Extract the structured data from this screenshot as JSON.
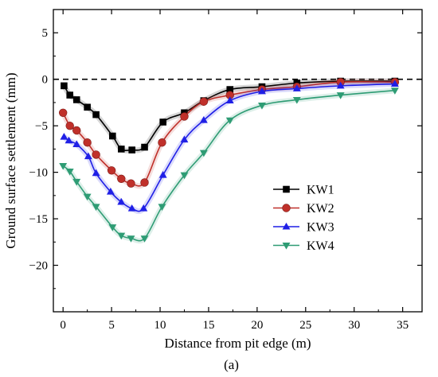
{
  "chart_data": {
    "type": "line",
    "xlabel": "Distance from pit edge (m)",
    "ylabel": "Ground surface settlement (mm)",
    "xlim": [
      -1,
      37
    ],
    "ylim": [
      -25,
      7.5
    ],
    "xticks": [
      0,
      5,
      10,
      15,
      20,
      25,
      30,
      35
    ],
    "yticks": [
      -20,
      -15,
      -10,
      -5,
      0,
      5
    ],
    "ytick_labels": [
      "−20",
      "−15",
      "−10",
      "−5",
      "0",
      "5"
    ],
    "reference_line": {
      "y": 0,
      "style": "dashed"
    },
    "legend_position": "center-right",
    "caption": "(a)",
    "series": [
      {
        "name": "KW1",
        "color": "#000000",
        "marker": "square",
        "x": [
          0.1,
          0.7,
          1.4,
          2.5,
          3.4,
          5.1,
          6.0,
          7.1,
          8.4,
          10.3,
          12.5,
          14.5,
          17.2,
          20.5,
          24.1,
          28.6,
          34.2
        ],
        "y": [
          -0.7,
          -1.7,
          -2.2,
          -3.0,
          -3.8,
          -6.1,
          -7.5,
          -7.6,
          -7.3,
          -4.6,
          -3.6,
          -2.3,
          -1.1,
          -0.8,
          -0.4,
          -0.2,
          -0.2
        ]
      },
      {
        "name": "KW2",
        "color": "#c0302a",
        "marker": "circle",
        "x": [
          0.0,
          0.7,
          1.4,
          2.5,
          3.4,
          5.0,
          6.0,
          7.0,
          8.4,
          10.2,
          12.5,
          14.5,
          17.2,
          20.5,
          24.1,
          28.6,
          34.2
        ],
        "y": [
          -3.6,
          -5.0,
          -5.5,
          -6.8,
          -8.1,
          -9.8,
          -10.7,
          -11.2,
          -11.1,
          -6.8,
          -4.0,
          -2.4,
          -1.7,
          -1.1,
          -0.8,
          -0.3,
          -0.3
        ]
      },
      {
        "name": "KW3",
        "color": "#1f1fe6",
        "marker": "triangle-up",
        "x": [
          0.1,
          0.6,
          1.4,
          2.6,
          3.4,
          4.9,
          6.0,
          7.1,
          8.3,
          10.3,
          12.5,
          14.5,
          17.2,
          20.5,
          24.1,
          28.6,
          34.2
        ],
        "y": [
          -6.2,
          -6.6,
          -7.0,
          -8.3,
          -10.1,
          -12.1,
          -13.2,
          -13.9,
          -13.9,
          -10.3,
          -6.5,
          -4.4,
          -2.3,
          -1.3,
          -1.0,
          -0.7,
          -0.5
        ]
      },
      {
        "name": "KW4",
        "color": "#2e9c74",
        "marker": "triangle-down",
        "x": [
          0.0,
          0.7,
          1.4,
          2.5,
          3.4,
          5.1,
          6.0,
          7.0,
          8.4,
          10.2,
          12.5,
          14.5,
          17.2,
          20.5,
          24.1,
          28.6,
          34.2
        ],
        "y": [
          -9.3,
          -9.9,
          -11.0,
          -12.6,
          -13.7,
          -15.9,
          -16.8,
          -17.1,
          -17.1,
          -13.7,
          -10.3,
          -7.9,
          -4.4,
          -2.8,
          -2.2,
          -1.7,
          -1.2
        ]
      }
    ]
  }
}
